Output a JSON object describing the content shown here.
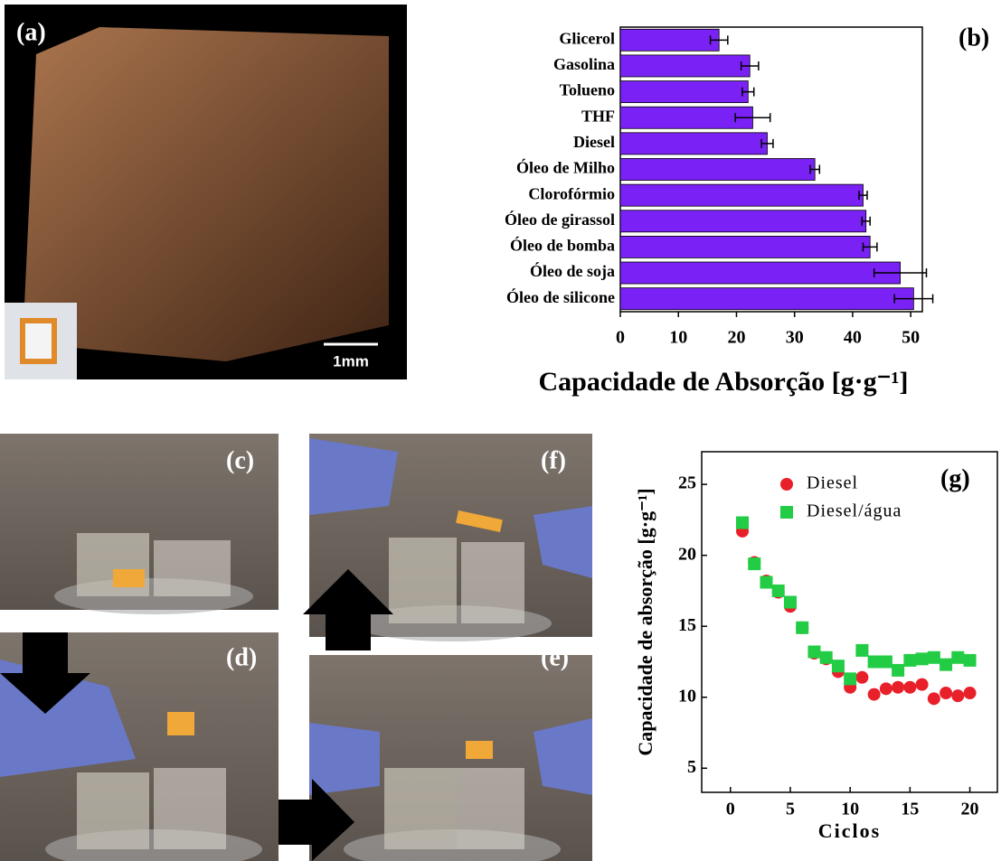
{
  "chart_data": [
    {
      "type": "hbar",
      "label": "(b)",
      "xlabel": "Capacidade de Absorção [g·g⁻¹]",
      "categories": [
        "Glicerol",
        "Gasolina",
        "Tolueno",
        "THF",
        "Diesel",
        "Óleo de Milho",
        "Clorofórmio",
        "Óleo de girassol",
        "Óleo de bomba",
        "Óleo de soja",
        "Óleo de silicone"
      ],
      "values": [
        17,
        22.3,
        22,
        22.8,
        25.3,
        33.5,
        41.8,
        42.3,
        43,
        48.2,
        50.5
      ],
      "errors": [
        1.5,
        1.5,
        1,
        3,
        1,
        0.8,
        0.7,
        0.7,
        1.2,
        4.5,
        3.3
      ],
      "color": "#7a22f5",
      "xlim": [
        0,
        52
      ],
      "xticks": [
        0,
        10,
        20,
        30,
        40,
        50
      ]
    },
    {
      "type": "scatter",
      "label": "(g)",
      "xlabel": "Ciclos",
      "ylabel": "Capacidade de absorção [g·g⁻¹]",
      "x": [
        1,
        2,
        3,
        4,
        5,
        6,
        7,
        8,
        9,
        10,
        11,
        12,
        13,
        14,
        15,
        16,
        17,
        18,
        19,
        20
      ],
      "series": [
        {
          "name": "Diesel",
          "color": "#e8202a",
          "marker": "circle",
          "values": [
            21.7,
            19.5,
            18.2,
            17.4,
            16.4,
            14.9,
            13.1,
            12.7,
            11.8,
            10.7,
            11.4,
            10.2,
            10.6,
            10.7,
            10.7,
            10.9,
            9.9,
            10.3,
            10.1,
            10.3
          ]
        },
        {
          "name": "Diesel/água",
          "color": "#22cc44",
          "marker": "square",
          "values": [
            22.3,
            19.4,
            18.1,
            17.5,
            16.7,
            14.9,
            13.2,
            12.8,
            12.2,
            11.3,
            13.3,
            12.5,
            12.5,
            11.9,
            12.6,
            12.7,
            12.8,
            12.3,
            12.8,
            12.6
          ]
        }
      ],
      "xlim": [
        -2.4,
        22.3
      ],
      "ylim": [
        3.3,
        27.3
      ],
      "xticks": [
        0,
        5,
        10,
        15,
        20
      ],
      "yticks": [
        5,
        10,
        15,
        20,
        25
      ]
    }
  ],
  "photo_panels": [
    {
      "label": "(a)",
      "scale_bar": "1mm"
    },
    {
      "label": "(c)"
    },
    {
      "label": "(f)"
    },
    {
      "label": "(d)"
    },
    {
      "label": "(e)"
    }
  ]
}
